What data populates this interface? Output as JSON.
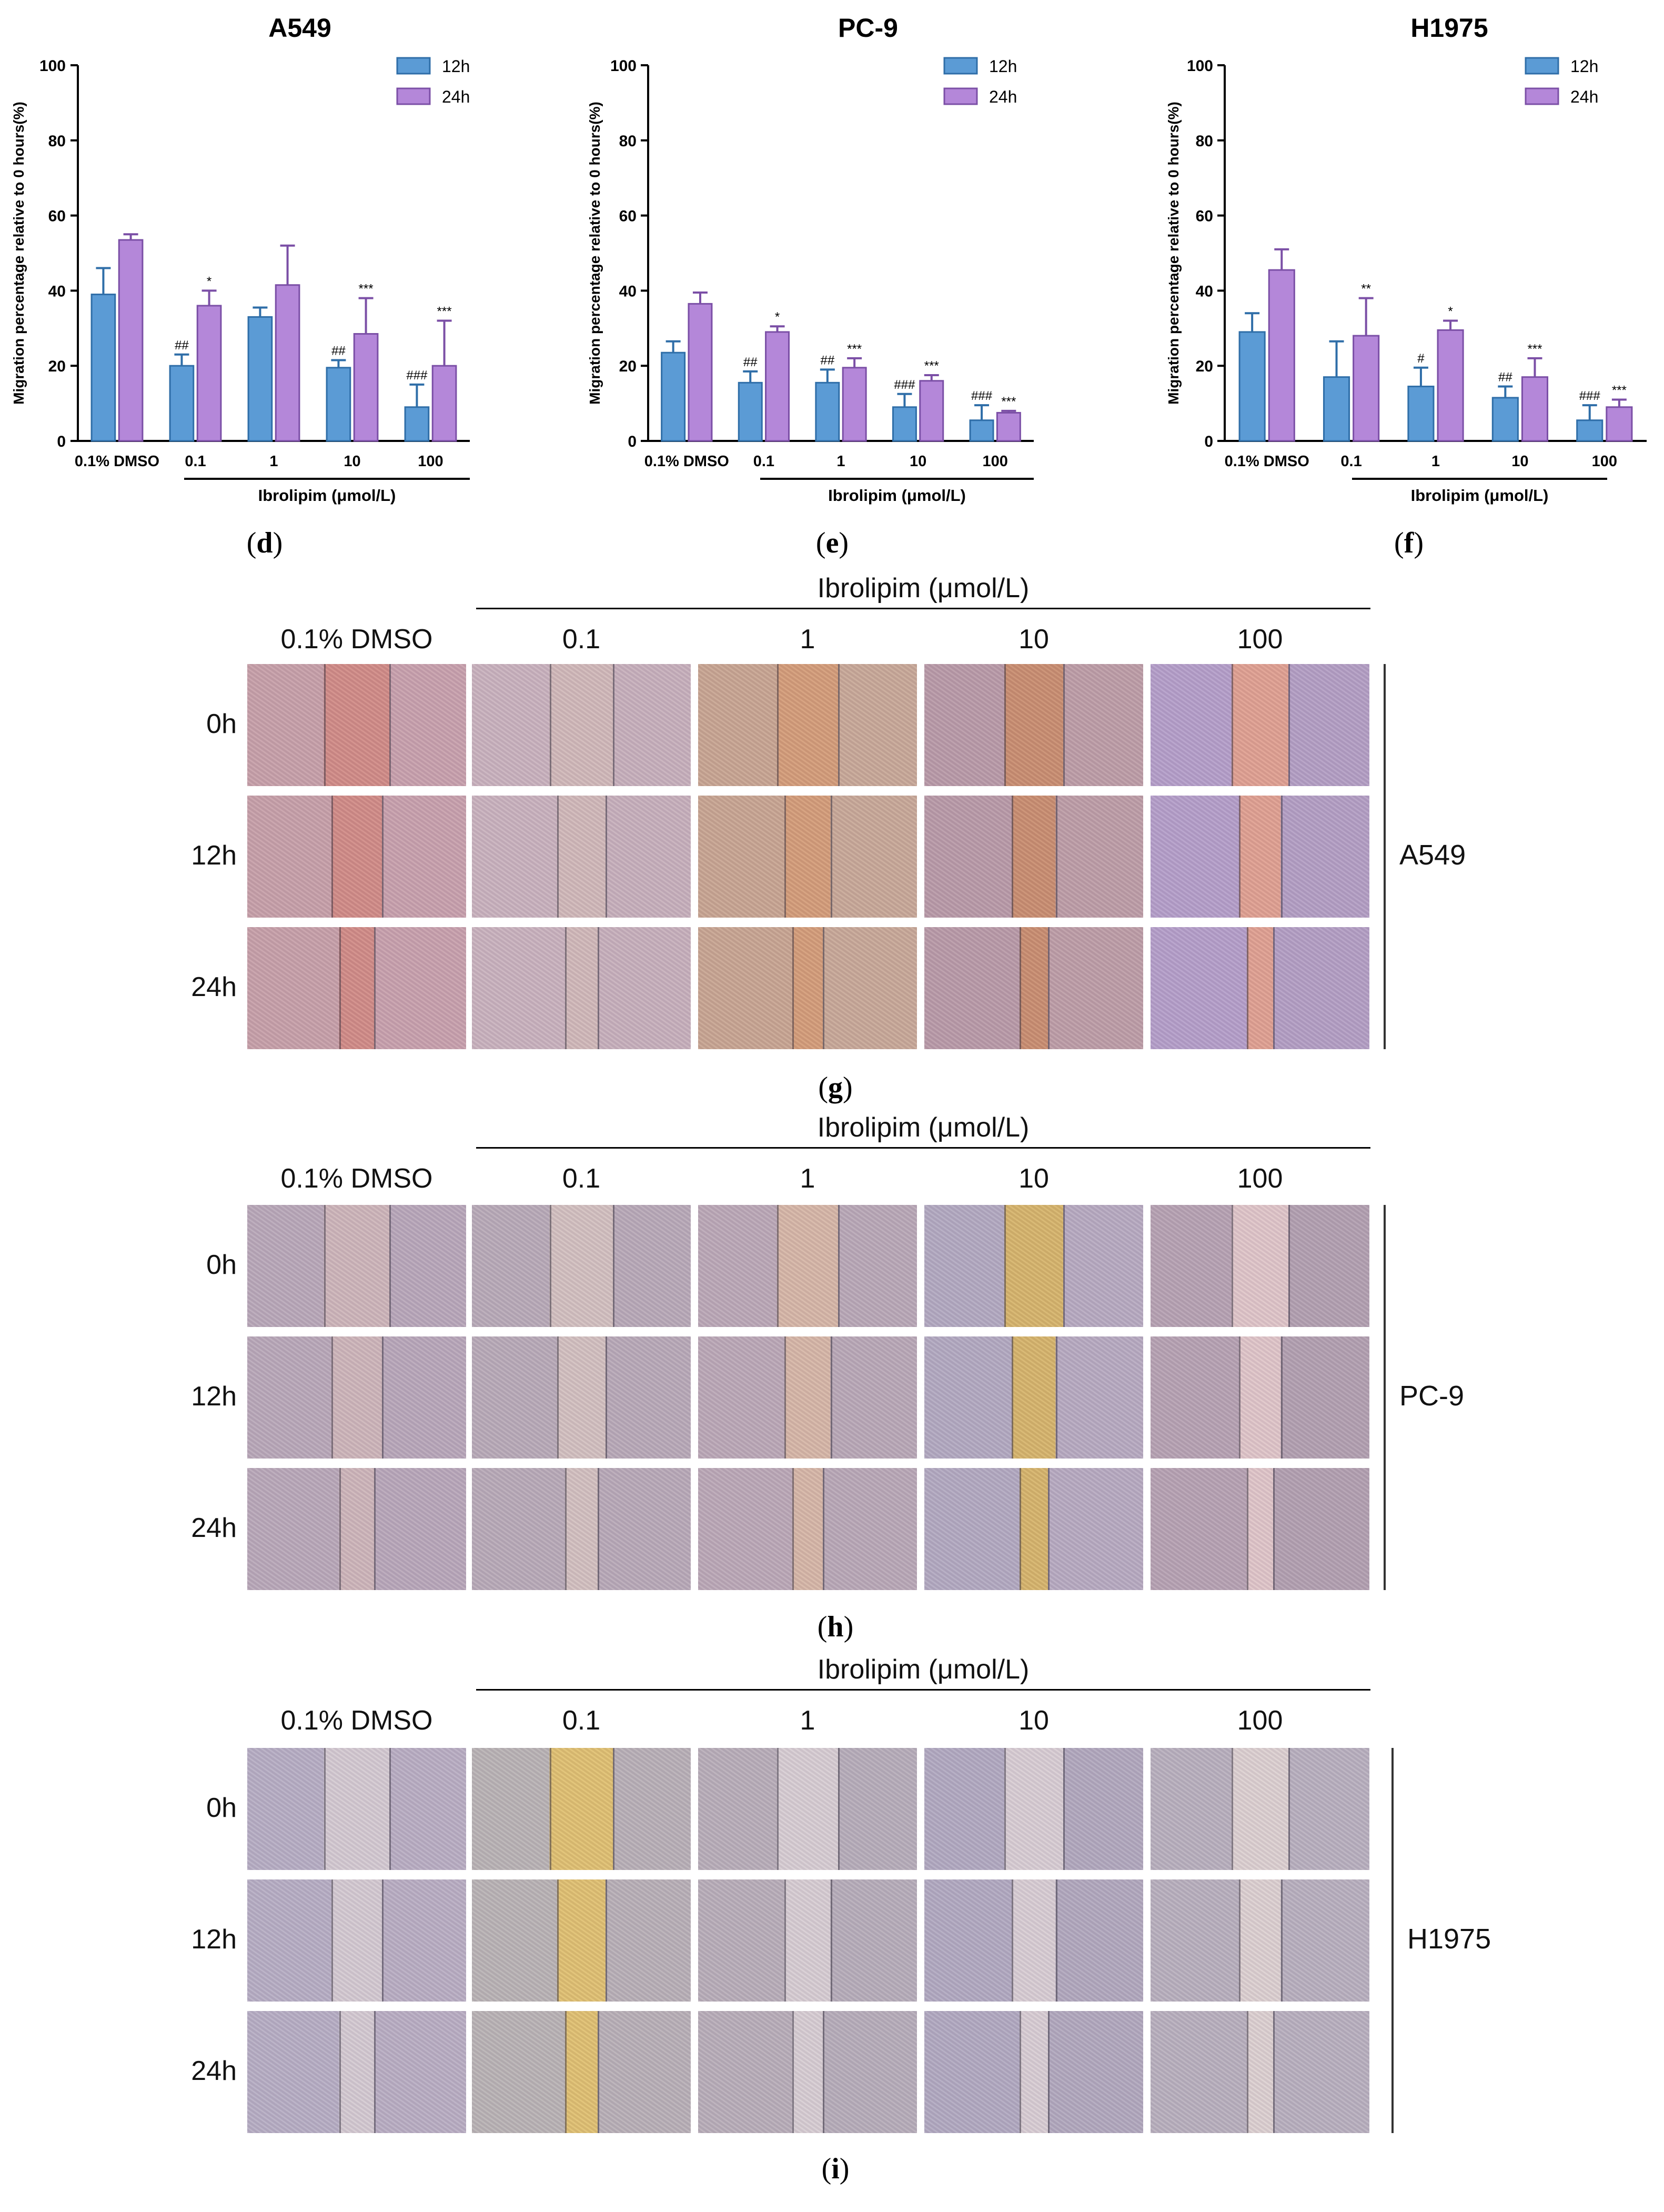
{
  "chart_data": [
    {
      "type": "bar",
      "panel": "d",
      "title": "A549",
      "ylabel": "Migration percentage relative to 0 hours(%)",
      "xgroup_label": "Ibrolipim (μmol/L)",
      "ylim": [
        0,
        100
      ],
      "yticks": [
        0,
        20,
        40,
        60,
        80,
        100
      ],
      "legend_position": "top-right",
      "categories": [
        "0.1% DMSO",
        "0.1",
        "1",
        "10",
        "100"
      ],
      "series": [
        {
          "name": "12h",
          "color": "#5b9bd5",
          "values": [
            39,
            20,
            33,
            19.5,
            9
          ],
          "errors": [
            7,
            3,
            2.5,
            2,
            6
          ],
          "labels": [
            "",
            "##",
            "",
            "##",
            "###"
          ]
        },
        {
          "name": "24h",
          "color": "#b487d9",
          "values": [
            53.5,
            36,
            41.5,
            28.5,
            20
          ],
          "errors": [
            1.5,
            4,
            10.5,
            9.5,
            12
          ],
          "labels": [
            "",
            "*",
            "",
            "***",
            "***"
          ]
        }
      ]
    },
    {
      "type": "bar",
      "panel": "e",
      "title": "PC-9",
      "ylabel": "Migration percentage relative to 0 hours(%)",
      "xgroup_label": "Ibrolipim (μmol/L)",
      "ylim": [
        0,
        100
      ],
      "yticks": [
        0,
        20,
        40,
        60,
        80,
        100
      ],
      "legend_position": "top-right",
      "categories": [
        "0.1% DMSO",
        "0.1",
        "1",
        "10",
        "100"
      ],
      "series": [
        {
          "name": "12h",
          "color": "#5b9bd5",
          "values": [
            23.5,
            15.5,
            15.5,
            9,
            5.5
          ],
          "errors": [
            3,
            3,
            3.5,
            3.5,
            4
          ],
          "labels": [
            "",
            "##",
            "##",
            "###",
            "###"
          ]
        },
        {
          "name": "24h",
          "color": "#b487d9",
          "values": [
            36.5,
            29,
            19.5,
            16,
            7.5
          ],
          "errors": [
            3,
            1.5,
            2.5,
            1.5,
            0.5
          ],
          "labels": [
            "",
            "*",
            "***",
            "***",
            "***"
          ]
        }
      ]
    },
    {
      "type": "bar",
      "panel": "f",
      "title": "H1975",
      "ylabel": "Migration percentage relative to 0 hours(%)",
      "xgroup_label": "Ibrolipim (μmol/L)",
      "ylim": [
        0,
        100
      ],
      "yticks": [
        0,
        20,
        40,
        60,
        80,
        100
      ],
      "legend_position": "top-right",
      "categories": [
        "0.1% DMSO",
        "0.1",
        "1",
        "10",
        "100"
      ],
      "series": [
        {
          "name": "12h",
          "color": "#5b9bd5",
          "values": [
            29,
            17,
            14.5,
            11.5,
            5.5
          ],
          "errors": [
            5,
            9.5,
            5,
            3,
            4
          ],
          "labels": [
            "",
            "",
            "#",
            "##",
            "###"
          ]
        },
        {
          "name": "24h",
          "color": "#b487d9",
          "values": [
            45.5,
            28,
            29.5,
            17,
            9
          ],
          "errors": [
            5.5,
            10,
            2.5,
            5,
            2
          ],
          "labels": [
            "",
            "**",
            "*",
            "***",
            "***"
          ]
        }
      ]
    }
  ],
  "micrographs": [
    {
      "panel": "g",
      "cell_line": "A549",
      "header": "Ibrolipim (μmol/L)",
      "columns": [
        "0.1% DMSO",
        "0.1",
        "1",
        "10",
        "100"
      ],
      "rows": [
        "0h",
        "12h",
        "24h"
      ]
    },
    {
      "panel": "h",
      "cell_line": "PC-9",
      "header": "Ibrolipim (μmol/L)",
      "columns": [
        "0.1% DMSO",
        "0.1",
        "1",
        "10",
        "100"
      ],
      "rows": [
        "0h",
        "12h",
        "24h"
      ]
    },
    {
      "panel": "i",
      "cell_line": "H1975",
      "header": "Ibrolipim (μmol/L)",
      "columns": [
        "0.1% DMSO",
        "0.1",
        "1",
        "10",
        "100"
      ],
      "rows": [
        "0h",
        "12h",
        "24h"
      ]
    }
  ],
  "colors": {
    "bar_12h": "#5b9bd5",
    "bar_24h": "#b487d9",
    "bar_edge_12h": "#2f6ea8",
    "bar_edge_24h": "#7b4fa6"
  }
}
